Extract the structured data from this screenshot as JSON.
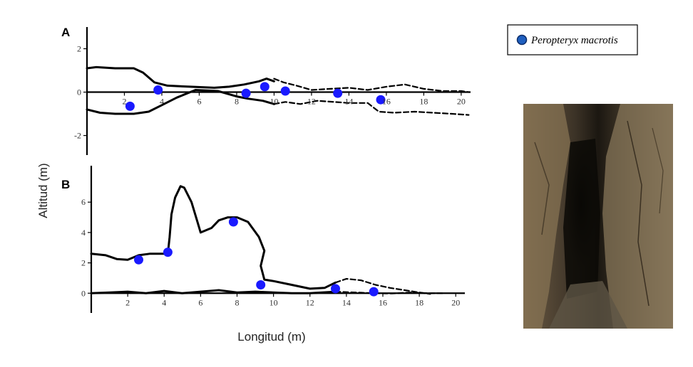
{
  "colors": {
    "dot": "#1a1aff",
    "line": "#000000",
    "legend_dot": "#1f5fbf"
  },
  "legend": {
    "label": "Peropteryx macrotis",
    "icon": "blue-circle-marker"
  },
  "axes": {
    "ylabel": "Altitud (m)",
    "xlabel": "Longitud (m)"
  },
  "photo": {
    "subject": "cave-passage-photo"
  },
  "chart_data": [
    {
      "type": "line",
      "panel": "A",
      "xlim": [
        0,
        20.5
      ],
      "ylim": [
        -2.9,
        3
      ],
      "xticks": [
        2,
        4,
        6,
        8,
        10,
        12,
        14,
        16,
        18,
        20
      ],
      "yticks": [
        -2,
        0,
        2
      ],
      "series": [
        {
          "style": "solid",
          "points": [
            [
              0,
              1.1
            ],
            [
              0.5,
              1.15
            ],
            [
              1.5,
              1.1
            ],
            [
              2.5,
              1.1
            ],
            [
              3,
              0.9
            ],
            [
              3.6,
              0.45
            ],
            [
              4.3,
              0.3
            ],
            [
              5.5,
              0.25
            ],
            [
              6.8,
              0.2
            ],
            [
              7.6,
              0.25
            ],
            [
              8.4,
              0.35
            ],
            [
              9.2,
              0.5
            ],
            [
              9.6,
              0.62
            ],
            [
              10,
              0.5
            ]
          ]
        },
        {
          "style": "solid",
          "points": [
            [
              0,
              -0.8
            ],
            [
              0.7,
              -0.95
            ],
            [
              1.5,
              -1.0
            ],
            [
              2.5,
              -1.0
            ],
            [
              3.3,
              -0.9
            ],
            [
              4,
              -0.6
            ],
            [
              4.8,
              -0.25
            ],
            [
              5.8,
              0.1
            ],
            [
              7,
              0.05
            ],
            [
              8,
              -0.2
            ],
            [
              8.6,
              -0.3
            ],
            [
              9.4,
              -0.4
            ],
            [
              10,
              -0.55
            ]
          ]
        },
        {
          "style": "dashed",
          "points": [
            [
              10,
              0.62
            ],
            [
              10.5,
              0.45
            ],
            [
              11.2,
              0.3
            ],
            [
              12,
              0.1
            ],
            [
              13,
              0.15
            ],
            [
              14,
              0.2
            ],
            [
              15,
              0.1
            ],
            [
              16,
              0.25
            ],
            [
              17,
              0.35
            ],
            [
              18,
              0.15
            ],
            [
              19,
              0.05
            ],
            [
              20,
              0.05
            ],
            [
              20.4,
              0.0
            ]
          ]
        },
        {
          "style": "dashed",
          "points": [
            [
              10,
              -0.55
            ],
            [
              10.6,
              -0.45
            ],
            [
              11.4,
              -0.55
            ],
            [
              12.3,
              -0.4
            ],
            [
              13.2,
              -0.45
            ],
            [
              14,
              -0.5
            ],
            [
              15,
              -0.5
            ],
            [
              15.6,
              -0.9
            ],
            [
              16.4,
              -0.95
            ],
            [
              17.5,
              -0.9
            ],
            [
              18.5,
              -0.95
            ],
            [
              19.5,
              -1.0
            ],
            [
              20.4,
              -1.05
            ]
          ]
        }
      ],
      "bats": [
        [
          2.3,
          -0.65
        ],
        [
          3.8,
          0.1
        ],
        [
          8.5,
          -0.05
        ],
        [
          9.5,
          0.25
        ],
        [
          10.6,
          0.05
        ],
        [
          13.4,
          -0.05
        ],
        [
          15.7,
          -0.35
        ]
      ]
    },
    {
      "type": "line",
      "panel": "B",
      "xlim": [
        0,
        20.5
      ],
      "ylim": [
        -1.3,
        8.4
      ],
      "xticks": [
        2,
        4,
        6,
        8,
        10,
        12,
        14,
        16,
        18,
        20
      ],
      "yticks": [
        0,
        2,
        4,
        6
      ],
      "series": [
        {
          "style": "solid",
          "points": [
            [
              0,
              2.6
            ],
            [
              0.8,
              2.5
            ],
            [
              1.4,
              2.25
            ],
            [
              2,
              2.2
            ],
            [
              2.6,
              2.5
            ],
            [
              3.2,
              2.6
            ],
            [
              4.2,
              2.6
            ],
            [
              4.3,
              3.7
            ],
            [
              4.4,
              5.2
            ],
            [
              4.6,
              6.3
            ],
            [
              4.9,
              7.05
            ],
            [
              5.1,
              6.95
            ],
            [
              5.5,
              6.0
            ],
            [
              5.8,
              4.8
            ],
            [
              6.0,
              4.0
            ],
            [
              6.6,
              4.3
            ],
            [
              7.0,
              4.8
            ],
            [
              7.5,
              5.0
            ],
            [
              8.0,
              5.0
            ],
            [
              8.6,
              4.7
            ],
            [
              9.2,
              3.7
            ],
            [
              9.5,
              2.8
            ],
            [
              9.3,
              1.8
            ],
            [
              9.5,
              0.9
            ],
            [
              10,
              0.8
            ],
            [
              11,
              0.55
            ],
            [
              12,
              0.3
            ],
            [
              12.8,
              0.35
            ],
            [
              13.4,
              0.7
            ]
          ]
        },
        {
          "style": "solid",
          "points": [
            [
              0,
              0.0
            ],
            [
              1,
              0.05
            ],
            [
              2,
              0.1
            ],
            [
              3,
              0.0
            ],
            [
              4,
              0.15
            ],
            [
              5,
              0.0
            ],
            [
              6,
              0.1
            ],
            [
              7,
              0.2
            ],
            [
              8,
              0.05
            ],
            [
              9,
              0.1
            ],
            [
              10,
              0.05
            ],
            [
              11,
              0.0
            ],
            [
              12,
              0.0
            ],
            [
              13.4,
              0.1
            ]
          ]
        },
        {
          "style": "dashed",
          "points": [
            [
              13.4,
              0.7
            ],
            [
              14,
              0.95
            ],
            [
              14.8,
              0.85
            ],
            [
              15.6,
              0.55
            ],
            [
              16.4,
              0.35
            ],
            [
              17.2,
              0.2
            ],
            [
              18,
              0.05
            ],
            [
              18.6,
              -0.05
            ]
          ]
        },
        {
          "style": "dashed",
          "points": [
            [
              13.4,
              0.1
            ],
            [
              14.5,
              0.05
            ],
            [
              15.5,
              0.0
            ],
            [
              16.5,
              -0.02
            ],
            [
              17.5,
              0.05
            ],
            [
              18.5,
              0.0
            ],
            [
              19.3,
              0.0
            ]
          ]
        }
      ],
      "bats": [
        [
          2.6,
          2.2
        ],
        [
          4.2,
          2.7
        ],
        [
          7.8,
          4.7
        ],
        [
          9.3,
          0.55
        ],
        [
          13.4,
          0.3
        ],
        [
          15.5,
          0.1
        ]
      ]
    }
  ]
}
